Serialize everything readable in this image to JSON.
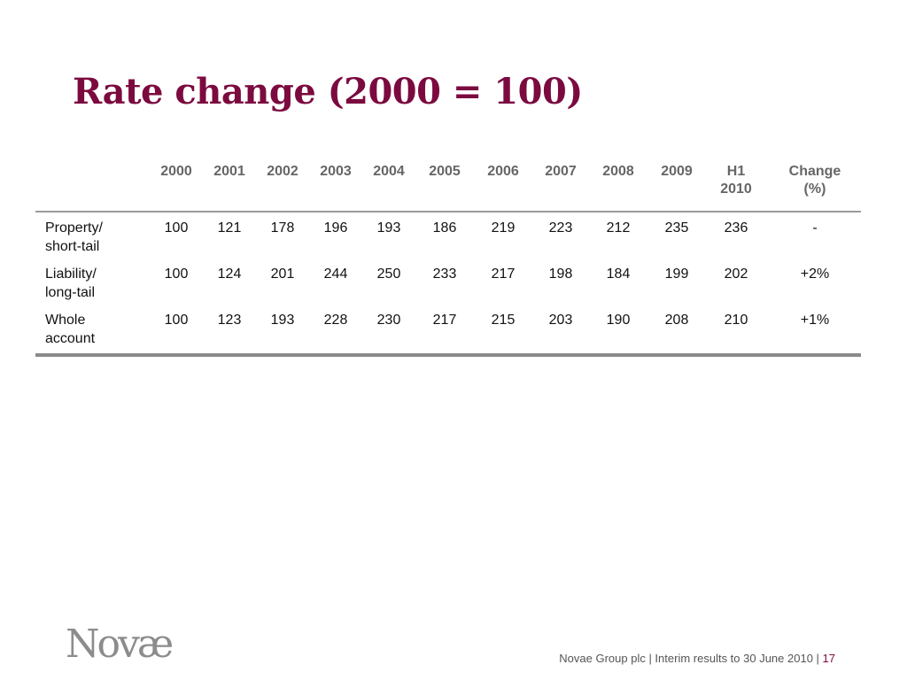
{
  "title": "Rate change (2000 = 100)",
  "table": {
    "headers": [
      "",
      "2000",
      "2001",
      "2002",
      "2003",
      "2004",
      "2005",
      "2006",
      "2007",
      "2008",
      "2009",
      "H1\n2010",
      "Change\n(%)"
    ],
    "rows": [
      {
        "label": "Property/\nshort-tail",
        "values": [
          "100",
          "121",
          "178",
          "196",
          "193",
          "186",
          "219",
          "223",
          "212",
          "235",
          "236",
          "-"
        ]
      },
      {
        "label": "Liability/\nlong-tail",
        "values": [
          "100",
          "124",
          "201",
          "244",
          "250",
          "233",
          "217",
          "198",
          "184",
          "199",
          "202",
          "+2%"
        ]
      },
      {
        "label": "Whole\naccount",
        "values": [
          "100",
          "123",
          "193",
          "228",
          "230",
          "217",
          "215",
          "203",
          "190",
          "208",
          "210",
          "+1%"
        ]
      }
    ]
  },
  "logo_text": "Novæ",
  "footer": {
    "text": "Novae Group plc | Interim results to 30 June 2010 | ",
    "page_number": "17"
  },
  "colors": {
    "title": "#7b0a3f",
    "header_text": "#666666",
    "rule": "#9a9a9a",
    "logo": "#8c8c8c"
  }
}
